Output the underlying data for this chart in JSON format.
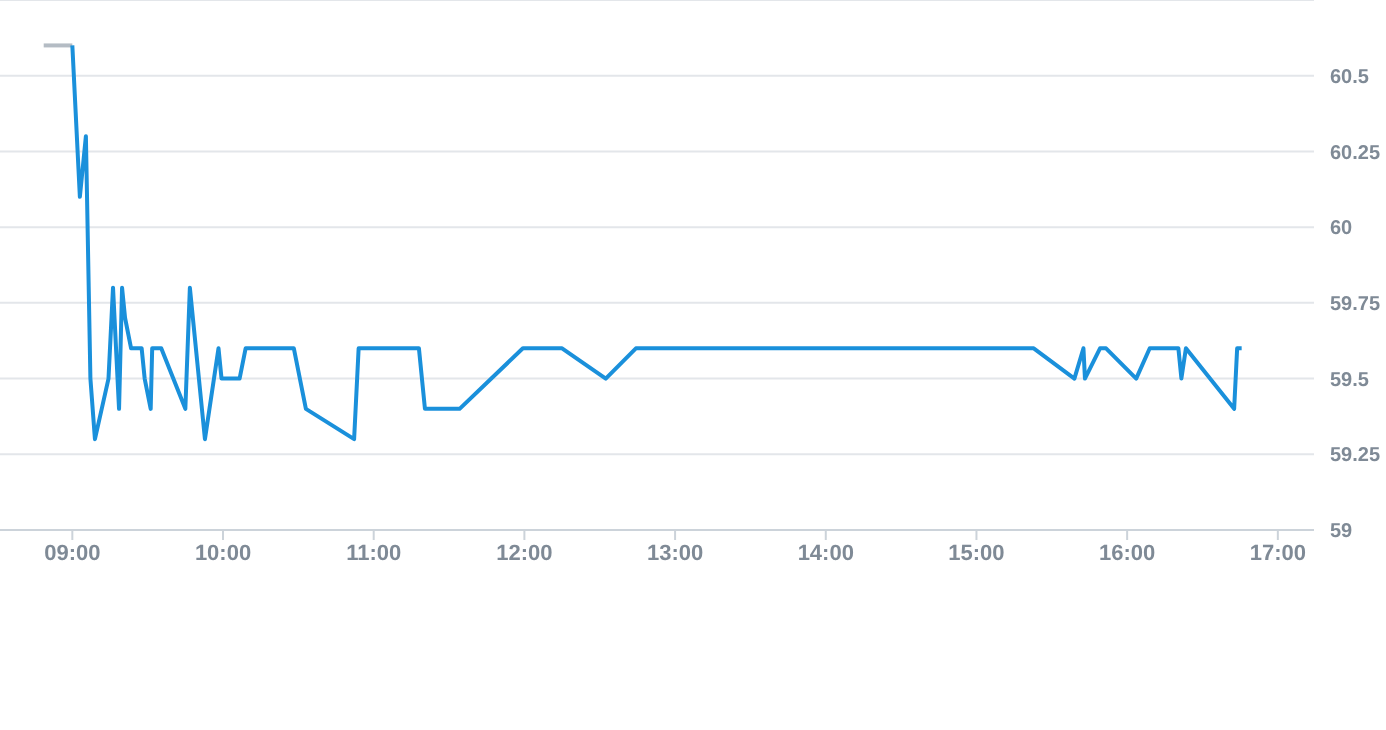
{
  "chart_data": {
    "type": "line",
    "xlim": [
      8.52,
      17.24
    ],
    "ylim": [
      59,
      60.75
    ],
    "xticks": [
      {
        "value": 9,
        "label": "09:00"
      },
      {
        "value": 10,
        "label": "10:00"
      },
      {
        "value": 11,
        "label": "11:00"
      },
      {
        "value": 12,
        "label": "12:00"
      },
      {
        "value": 13,
        "label": "13:00"
      },
      {
        "value": 14,
        "label": "14:00"
      },
      {
        "value": 15,
        "label": "15:00"
      },
      {
        "value": 16,
        "label": "16:00"
      },
      {
        "value": 17,
        "label": "17:00"
      }
    ],
    "yticks": [
      59,
      59.25,
      59.5,
      59.75,
      60,
      60.25,
      60.5
    ],
    "grid": "y",
    "marker": "none",
    "line_style": "solid",
    "series": [
      {
        "color": "#b4bcc4",
        "x": [
          8.81,
          9.0
        ],
        "values": [
          60.6,
          60.6
        ]
      },
      {
        "color": "#1a90db",
        "x": [
          9.0,
          9.05,
          9.09,
          9.12,
          9.15,
          9.24,
          9.27,
          9.31,
          9.33,
          9.35,
          9.39,
          9.46,
          9.48,
          9.52,
          9.53,
          9.59,
          9.67,
          9.75,
          9.78,
          9.88,
          9.97,
          9.99,
          10.11,
          10.15,
          10.47,
          10.55,
          10.87,
          10.9,
          11.3,
          11.34,
          11.57,
          11.99,
          12.25,
          12.54,
          12.74,
          15.38,
          15.65,
          15.71,
          15.72,
          15.82,
          15.86,
          16.06,
          16.15,
          16.34,
          16.36,
          16.39,
          16.71,
          16.73,
          16.76
        ],
        "values": [
          60.6,
          60.1,
          60.3,
          59.5,
          59.3,
          59.5,
          59.8,
          59.4,
          59.8,
          59.7,
          59.6,
          59.6,
          59.5,
          59.4,
          59.6,
          59.6,
          59.5,
          59.4,
          59.8,
          59.3,
          59.6,
          59.5,
          59.5,
          59.6,
          59.6,
          59.4,
          59.3,
          59.6,
          59.6,
          59.4,
          59.4,
          59.6,
          59.6,
          59.5,
          59.6,
          59.6,
          59.5,
          59.6,
          59.5,
          59.6,
          59.6,
          59.5,
          59.6,
          59.6,
          59.5,
          59.6,
          59.4,
          59.6,
          59.6
        ]
      }
    ]
  }
}
